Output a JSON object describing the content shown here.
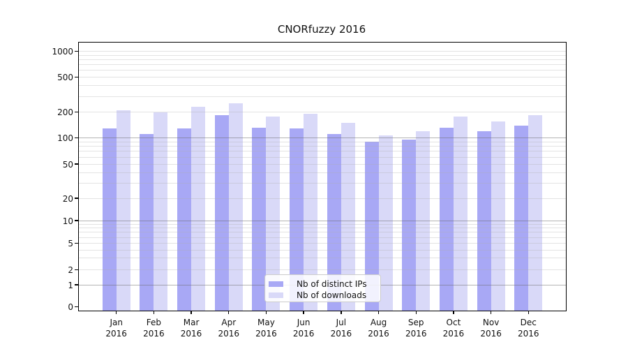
{
  "title": "CNORfuzzy 2016",
  "chart_data": {
    "type": "bar",
    "title": "CNORfuzzy 2016",
    "yscale": "symlog",
    "grid": true,
    "yticks": [
      0,
      1,
      2,
      5,
      10,
      20,
      50,
      100,
      200,
      500,
      1000
    ],
    "ylim": [
      0,
      1200
    ],
    "categories": [
      "Jan",
      "Feb",
      "Mar",
      "Apr",
      "May",
      "Jun",
      "Jul",
      "Aug",
      "Sep",
      "Oct",
      "Nov",
      "Dec"
    ],
    "category_year": "2016",
    "series": [
      {
        "name": "Nb of distinct IPs",
        "color": "#a8a8f5",
        "values": [
          130,
          112,
          130,
          185,
          132,
          130,
          113,
          91,
          97,
          132,
          121,
          139
        ]
      },
      {
        "name": "Nb of downloads",
        "color": "#d9d9f8",
        "values": [
          210,
          198,
          230,
          255,
          180,
          193,
          152,
          108,
          120,
          177,
          158,
          186
        ]
      }
    ],
    "legend_position": "lower center"
  }
}
